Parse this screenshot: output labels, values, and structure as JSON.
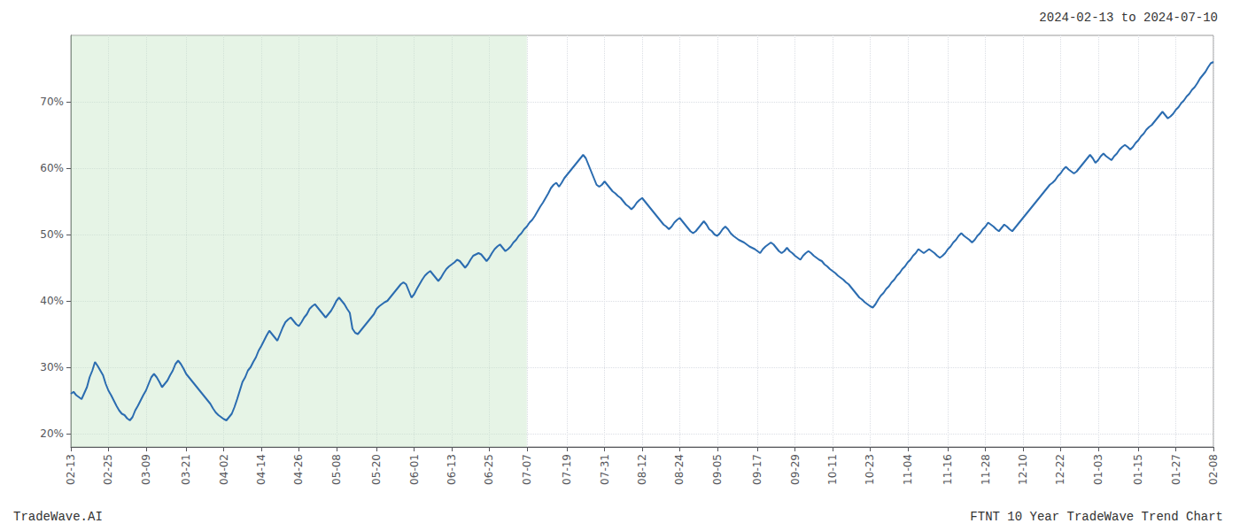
{
  "chart_data": {
    "type": "line",
    "title": "FTNT 10 Year TradeWave Trend Chart",
    "subtitle": "2024-02-13 to 2024-07-10",
    "annotations": [
      "TradeWave.AI"
    ],
    "color": "#2b6cb0",
    "categories": [
      "02-13",
      null,
      null,
      null,
      null,
      null,
      null,
      null,
      null,
      null,
      null,
      null,
      null,
      null,
      "02-25",
      null,
      null,
      null,
      null,
      null,
      null,
      null,
      null,
      null,
      null,
      null,
      null,
      null,
      "03-09",
      null,
      null,
      null,
      null,
      null,
      null,
      null,
      null,
      null,
      null,
      null,
      null,
      null,
      null,
      "03-21",
      null,
      null,
      null,
      null,
      null,
      null,
      null,
      null,
      null,
      null,
      null,
      null,
      null,
      "04-02",
      null,
      null,
      null,
      null,
      null,
      null,
      null,
      null,
      null,
      null,
      null,
      null,
      null,
      "04-14",
      null,
      null,
      null,
      null,
      null,
      null,
      null,
      null,
      null,
      null,
      null,
      null,
      null,
      "04-26",
      null,
      null,
      null,
      null,
      null,
      null,
      null,
      null,
      null,
      null,
      null,
      null,
      null,
      "05-08",
      null,
      null,
      null,
      null,
      null,
      null,
      null,
      null,
      null,
      null,
      null,
      null,
      null,
      null,
      "05-20",
      null,
      null,
      null,
      null,
      null,
      null,
      null,
      null,
      null,
      null,
      null,
      null,
      null,
      "06-01",
      null,
      null,
      null,
      null,
      null,
      null,
      null,
      null,
      null,
      null,
      null,
      null,
      null,
      "06-13",
      null,
      null,
      null,
      null,
      null,
      null,
      null,
      null,
      null,
      null,
      null,
      null,
      null,
      "06-25",
      null,
      null,
      null,
      null,
      null,
      null,
      null,
      null,
      null,
      null,
      null,
      null,
      null,
      "07-07",
      null,
      null,
      null,
      null,
      null,
      null,
      null,
      null,
      null,
      null,
      null,
      null,
      null,
      null,
      "07-19",
      null,
      null,
      null,
      null,
      null,
      null,
      null,
      null,
      null,
      null,
      null,
      null,
      null,
      "07-31",
      null,
      null,
      null,
      null,
      null,
      null,
      null,
      null,
      null,
      null,
      null,
      null,
      null,
      "08-12",
      null,
      null,
      null,
      null,
      null,
      null,
      null,
      null,
      null,
      null,
      null,
      null,
      null,
      "08-24",
      null,
      null,
      null,
      null,
      null,
      null,
      null,
      null,
      null,
      null,
      null,
      null,
      null,
      "09-05",
      null,
      null,
      null,
      null,
      null,
      null,
      null,
      null,
      null,
      null,
      null,
      null,
      null,
      null,
      "09-17",
      null,
      null,
      null,
      null,
      null,
      null,
      null,
      null,
      null,
      null,
      null,
      null,
      null,
      "09-29",
      null,
      null,
      null,
      null,
      null,
      null,
      null,
      null,
      null,
      null,
      null,
      null,
      null,
      "10-11",
      null,
      null,
      null,
      null,
      null,
      null,
      null,
      null,
      null,
      null,
      null,
      null,
      null,
      "10-23",
      null,
      null,
      null,
      null,
      null,
      null,
      null,
      null,
      null,
      null,
      null,
      null,
      null,
      "11-04",
      null,
      null,
      null,
      null,
      null,
      null,
      null,
      null,
      null,
      null,
      null,
      null,
      null,
      null,
      "11-16",
      null,
      null,
      null,
      null,
      null,
      null,
      null,
      null,
      null,
      null,
      null,
      null,
      null,
      "11-28",
      null,
      null,
      null,
      null,
      null,
      null,
      null,
      null,
      null,
      null,
      null,
      null,
      null,
      "12-10",
      null,
      null,
      null,
      null,
      null,
      null,
      null,
      null,
      null,
      null,
      null,
      null,
      null,
      "12-22",
      null,
      null,
      null,
      null,
      null,
      null,
      null,
      null,
      null,
      null,
      null,
      null,
      null,
      "01-03",
      null,
      null,
      null,
      null,
      null,
      null,
      null,
      null,
      null,
      null,
      null,
      null,
      null,
      null,
      "01-15",
      null,
      null,
      null,
      null,
      null,
      null,
      null,
      null,
      null,
      null,
      null,
      null,
      null,
      "01-27",
      null,
      null,
      null,
      null,
      null,
      null,
      null,
      null,
      null,
      null,
      null,
      null,
      null,
      "02-08"
    ],
    "values": [
      26.0,
      26.3,
      25.8,
      25.5,
      25.2,
      26.1,
      27.0,
      28.5,
      29.5,
      30.8,
      30.2,
      29.5,
      28.8,
      27.5,
      26.5,
      25.8,
      25.0,
      24.2,
      23.5,
      23.0,
      22.8,
      22.3,
      22.0,
      22.5,
      23.5,
      24.2,
      25.0,
      25.8,
      26.5,
      27.5,
      28.5,
      29.0,
      28.5,
      27.8,
      27.0,
      27.5,
      28.0,
      28.8,
      29.5,
      30.5,
      31.0,
      30.5,
      29.8,
      29.0,
      28.5,
      28.0,
      27.5,
      27.0,
      26.5,
      26.0,
      25.5,
      25.0,
      24.5,
      23.8,
      23.2,
      22.8,
      22.5,
      22.2,
      22.0,
      22.5,
      23.0,
      24.0,
      25.2,
      26.5,
      27.8,
      28.5,
      29.5,
      30.0,
      30.8,
      31.5,
      32.5,
      33.2,
      34.0,
      34.8,
      35.5,
      35.0,
      34.5,
      34.0,
      35.0,
      36.0,
      36.8,
      37.2,
      37.5,
      37.0,
      36.5,
      36.2,
      36.8,
      37.5,
      38.0,
      38.8,
      39.2,
      39.5,
      39.0,
      38.5,
      38.0,
      37.5,
      38.0,
      38.5,
      39.2,
      40.0,
      40.5,
      40.0,
      39.5,
      38.8,
      38.2,
      35.8,
      35.2,
      35.0,
      35.5,
      36.0,
      36.5,
      37.0,
      37.5,
      38.0,
      38.8,
      39.2,
      39.5,
      39.8,
      40.0,
      40.5,
      41.0,
      41.5,
      42.0,
      42.5,
      42.8,
      42.5,
      41.5,
      40.5,
      41.0,
      41.8,
      42.5,
      43.2,
      43.8,
      44.2,
      44.5,
      44.0,
      43.5,
      43.0,
      43.5,
      44.2,
      44.8,
      45.2,
      45.5,
      45.8,
      46.2,
      46.0,
      45.5,
      45.0,
      45.5,
      46.2,
      46.8,
      47.0,
      47.2,
      47.0,
      46.5,
      46.0,
      46.5,
      47.2,
      47.8,
      48.2,
      48.5,
      48.0,
      47.5,
      47.8,
      48.2,
      48.8,
      49.2,
      49.8,
      50.2,
      50.8,
      51.2,
      51.8,
      52.2,
      52.8,
      53.5,
      54.2,
      54.8,
      55.5,
      56.2,
      57.0,
      57.5,
      57.8,
      57.2,
      57.8,
      58.5,
      59.0,
      59.5,
      60.0,
      60.5,
      61.0,
      61.5,
      62.0,
      61.5,
      60.5,
      59.5,
      58.5,
      57.5,
      57.2,
      57.5,
      58.0,
      57.5,
      57.0,
      56.5,
      56.2,
      55.8,
      55.5,
      55.0,
      54.5,
      54.2,
      53.8,
      54.2,
      54.8,
      55.2,
      55.5,
      55.0,
      54.5,
      54.0,
      53.5,
      53.0,
      52.5,
      52.0,
      51.5,
      51.2,
      50.8,
      51.2,
      51.8,
      52.2,
      52.5,
      52.0,
      51.5,
      51.0,
      50.5,
      50.2,
      50.5,
      51.0,
      51.5,
      52.0,
      51.5,
      50.8,
      50.5,
      50.0,
      49.8,
      50.2,
      50.8,
      51.2,
      50.8,
      50.2,
      49.8,
      49.5,
      49.2,
      49.0,
      48.8,
      48.5,
      48.2,
      48.0,
      47.8,
      47.5,
      47.2,
      47.8,
      48.2,
      48.5,
      48.8,
      48.5,
      48.0,
      47.5,
      47.2,
      47.5,
      48.0,
      47.5,
      47.2,
      46.8,
      46.5,
      46.2,
      46.8,
      47.2,
      47.5,
      47.2,
      46.8,
      46.5,
      46.2,
      46.0,
      45.5,
      45.2,
      44.8,
      44.5,
      44.2,
      43.8,
      43.5,
      43.2,
      42.8,
      42.5,
      42.0,
      41.5,
      41.0,
      40.5,
      40.2,
      39.8,
      39.5,
      39.2,
      39.0,
      39.5,
      40.2,
      40.8,
      41.2,
      41.8,
      42.2,
      42.8,
      43.2,
      43.8,
      44.2,
      44.8,
      45.2,
      45.8,
      46.2,
      46.8,
      47.2,
      47.8,
      47.5,
      47.2,
      47.5,
      47.8,
      47.5,
      47.2,
      46.8,
      46.5,
      46.8,
      47.2,
      47.8,
      48.2,
      48.8,
      49.2,
      49.8,
      50.2,
      49.8,
      49.5,
      49.2,
      48.8,
      49.2,
      49.8,
      50.2,
      50.8,
      51.2,
      51.8,
      51.5,
      51.2,
      50.8,
      50.5,
      51.0,
      51.5,
      51.2,
      50.8,
      50.5,
      51.0,
      51.5,
      52.0,
      52.5,
      53.0,
      53.5,
      54.0,
      54.5,
      55.0,
      55.5,
      56.0,
      56.5,
      57.0,
      57.5,
      57.8,
      58.2,
      58.8,
      59.2,
      59.8,
      60.2,
      59.8,
      59.5,
      59.2,
      59.5,
      60.0,
      60.5,
      61.0,
      61.5,
      62.0,
      61.5,
      60.8,
      61.2,
      61.8,
      62.2,
      61.8,
      61.5,
      61.2,
      61.8,
      62.2,
      62.8,
      63.2,
      63.5,
      63.2,
      62.8,
      63.2,
      63.8,
      64.2,
      64.8,
      65.2,
      65.8,
      66.2,
      66.5,
      67.0,
      67.5,
      68.0,
      68.5,
      68.0,
      67.5,
      67.8,
      68.2,
      68.8,
      69.2,
      69.8,
      70.2,
      70.8,
      71.2,
      71.8,
      72.2,
      72.8,
      73.5,
      74.0,
      74.5,
      75.2,
      75.8,
      76.0
    ],
    "ylim": [
      18,
      80
    ],
    "yticks": [
      {
        "value": 20,
        "label": "20%"
      },
      {
        "value": 30,
        "label": "30%"
      },
      {
        "value": 40,
        "label": "40%"
      },
      {
        "value": 50,
        "label": "50%"
      },
      {
        "value": 60,
        "label": "60%"
      },
      {
        "value": 70,
        "label": "70%"
      }
    ],
    "grid": true,
    "shade": {
      "from": "02-13",
      "to": "07-07",
      "color": "#c8e6c8"
    }
  }
}
